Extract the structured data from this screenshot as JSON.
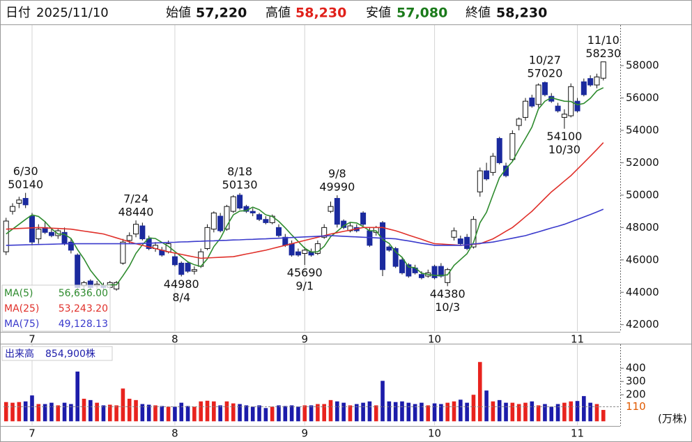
{
  "header": {
    "date_label": "日付",
    "date": "2025/11/10",
    "open_label": "始値",
    "open": "57,220",
    "high_label": "高値",
    "high": "58,230",
    "low_label": "安値",
    "low": "57,080",
    "close_label": "終値",
    "close": "58,230"
  },
  "chart_data": [
    {
      "type": "candlestick",
      "categories": [
        null,
        null,
        null,
        null,
        "7",
        null,
        null,
        null,
        null,
        null,
        null,
        null,
        null,
        null,
        null,
        null,
        null,
        null,
        null,
        null,
        null,
        null,
        null,
        null,
        null,
        null,
        "8",
        null,
        null,
        null,
        null,
        null,
        null,
        null,
        null,
        null,
        null,
        null,
        null,
        null,
        null,
        null,
        null,
        null,
        null,
        null,
        "9",
        null,
        null,
        null,
        null,
        null,
        null,
        null,
        null,
        null,
        null,
        null,
        null,
        null,
        null,
        null,
        null,
        null,
        null,
        null,
        "10",
        null,
        null,
        null,
        null,
        null,
        null,
        null,
        null,
        null,
        null,
        null,
        null,
        null,
        null,
        null,
        null,
        null,
        null,
        null,
        null,
        null,
        "11",
        null,
        null,
        null,
        null
      ],
      "open": [
        46500,
        49000,
        49500,
        49800,
        48700,
        47300,
        48000,
        47700,
        47500,
        47700,
        47100,
        46300,
        44400,
        44700,
        44400,
        44400,
        44300,
        44200,
        45800,
        47200,
        47600,
        48100,
        47300,
        46700,
        46600,
        46500,
        46200,
        45800,
        45800,
        45300,
        45600,
        46700,
        47900,
        48700,
        47900,
        49000,
        50000,
        49300,
        49000,
        48800,
        48500,
        48300,
        48000,
        47400,
        47000,
        46500,
        46400,
        46500,
        46400,
        47400,
        49000,
        49800,
        48400,
        47800,
        48000,
        48900,
        47800,
        47700,
        48300,
        46800,
        46700,
        46000,
        45700,
        45500,
        45100,
        45000,
        45600,
        45600,
        44600,
        47400,
        47300,
        47400,
        46800,
        50200,
        51500,
        51400,
        53500,
        51800,
        52200,
        54300,
        54800,
        56000,
        55600,
        56950,
        56100,
        55500,
        54800,
        54900,
        55800,
        57000,
        57200,
        56800,
        57220
      ],
      "high": [
        48600,
        49500,
        49900,
        50140,
        48900,
        48200,
        48400,
        48000,
        47900,
        48000,
        47300,
        46400,
        44700,
        44800,
        44700,
        44600,
        44700,
        44700,
        47300,
        47700,
        48440,
        48300,
        47500,
        47100,
        46800,
        47200,
        46400,
        45900,
        45900,
        45600,
        46700,
        48200,
        49000,
        48900,
        49400,
        50000,
        50130,
        49400,
        49200,
        48900,
        48700,
        48800,
        48200,
        47600,
        47200,
        46700,
        46800,
        46700,
        47200,
        48200,
        49600,
        49990,
        48500,
        48300,
        48200,
        49000,
        48000,
        48100,
        48400,
        46900,
        46800,
        46100,
        45800,
        45700,
        45300,
        45400,
        45700,
        45800,
        45500,
        48000,
        47500,
        47600,
        48700,
        51700,
        52000,
        52600,
        53600,
        52000,
        54000,
        54800,
        56000,
        56200,
        56900,
        57020,
        56300,
        55700,
        55300,
        56900,
        56000,
        57200,
        57400,
        57500,
        58230
      ],
      "low": [
        46300,
        48800,
        49200,
        49200,
        46900,
        47000,
        47600,
        47400,
        47300,
        46900,
        46400,
        43900,
        44100,
        44200,
        44200,
        44100,
        44200,
        44100,
        45700,
        47000,
        47400,
        47200,
        46600,
        46500,
        46200,
        46400,
        45600,
        44980,
        45200,
        45100,
        45500,
        46600,
        47700,
        47700,
        47800,
        48900,
        49100,
        48900,
        48700,
        48400,
        48200,
        48200,
        47400,
        46800,
        46200,
        46200,
        45690,
        46200,
        46300,
        47300,
        48900,
        48000,
        47900,
        47700,
        47700,
        48100,
        46800,
        47500,
        45000,
        46500,
        45500,
        45100,
        44900,
        45100,
        44800,
        44900,
        44800,
        44900,
        44380,
        47200,
        46900,
        46600,
        46700,
        49900,
        50900,
        51200,
        51900,
        51100,
        52100,
        54000,
        54600,
        55400,
        55400,
        56100,
        55700,
        55100,
        54100,
        54800,
        55100,
        56100,
        56700,
        56600,
        57080
      ],
      "close": [
        48400,
        49300,
        49700,
        49400,
        47100,
        47900,
        47700,
        47500,
        47800,
        47000,
        46600,
        44300,
        44600,
        44300,
        44500,
        44300,
        44600,
        44600,
        47100,
        47500,
        48200,
        47300,
        46700,
        46900,
        46300,
        47000,
        45700,
        45100,
        45300,
        45400,
        46500,
        48000,
        48900,
        47800,
        49300,
        49900,
        49200,
        49000,
        48900,
        48500,
        48300,
        48700,
        47500,
        46900,
        46300,
        46300,
        46600,
        46300,
        47000,
        48000,
        49300,
        48200,
        48000,
        48100,
        47800,
        48200,
        46900,
        48000,
        45400,
        46600,
        45600,
        45200,
        45000,
        45200,
        44900,
        45200,
        44900,
        45000,
        45400,
        47800,
        47000,
        46700,
        48500,
        51500,
        51000,
        52400,
        52000,
        51200,
        53800,
        54700,
        55800,
        55500,
        56800,
        56200,
        55800,
        55200,
        55000,
        56700,
        55200,
        56200,
        56800,
        57300,
        58230
      ],
      "up_color": "#ffffff",
      "down_color": "#1b2a9e",
      "edge_color": "#111111",
      "ylim": [
        41600,
        60500
      ],
      "yticks": [
        42000,
        44000,
        46000,
        48000,
        50000,
        52000,
        54000,
        56000,
        58000
      ],
      "grid": "x",
      "series": [
        {
          "name": "MA(5)",
          "color": "#2e8b2e",
          "value_label": "56,636.00",
          "values": [
            47600,
            47900,
            48200,
            48500,
            48780,
            48680,
            48360,
            47920,
            47600,
            47580,
            47320,
            46640,
            46060,
            45360,
            44860,
            44400,
            44460,
            44460,
            45020,
            45620,
            46400,
            46940,
            47360,
            47320,
            47080,
            46840,
            46520,
            46200,
            45880,
            45700,
            45600,
            46060,
            46820,
            47320,
            48100,
            48780,
            49020,
            49040,
            49260,
            49100,
            48780,
            48680,
            48380,
            47980,
            47540,
            47140,
            46720,
            46480,
            46500,
            46840,
            47440,
            47760,
            48100,
            48320,
            48280,
            48060,
            47800,
            47800,
            47260,
            47020,
            46500,
            46160,
            45560,
            45520,
            45180,
            45100,
            45040,
            45040,
            45080,
            45660,
            46020,
            46380,
            47080,
            48300,
            48940,
            50020,
            51080,
            51620,
            52080,
            52820,
            53500,
            54200,
            55320,
            55800,
            56020,
            55900,
            55800,
            55780,
            55580,
            55660,
            55980,
            56440,
            56636
          ]
        },
        {
          "name": "MA(25)",
          "color": "#e0302a",
          "value_label": "53,243.20",
          "values": [
            47900,
            47920,
            47940,
            47960,
            47980,
            48000,
            47980,
            47960,
            47940,
            47920,
            47900,
            47840,
            47780,
            47720,
            47660,
            47600,
            47480,
            47360,
            47240,
            47120,
            47000,
            46900,
            46800,
            46700,
            46600,
            46500,
            46420,
            46340,
            46260,
            46180,
            46100,
            46120,
            46140,
            46160,
            46180,
            46200,
            46280,
            46360,
            46440,
            46520,
            46600,
            46700,
            46800,
            46900,
            47000,
            47100,
            47200,
            47300,
            47400,
            47500,
            47600,
            47680,
            47760,
            47840,
            47920,
            48000,
            48000,
            48000,
            48000,
            47900,
            47800,
            47670,
            47530,
            47400,
            47270,
            47130,
            47000,
            46980,
            46950,
            46930,
            46900,
            46930,
            46970,
            47000,
            47150,
            47300,
            47530,
            47770,
            48000,
            48330,
            48670,
            49000,
            49400,
            49800,
            50200,
            50530,
            50870,
            51200,
            51600,
            52000,
            52400,
            52820,
            53243.2
          ]
        },
        {
          "name": "MA(75)",
          "color": "#3a3acc",
          "value_label": "49,128.13",
          "values": [
            46900,
            46910,
            46920,
            46930,
            46940,
            46950,
            46960,
            46970,
            46980,
            46990,
            47000,
            47000,
            47000,
            47000,
            47000,
            47000,
            47000,
            47000,
            47000,
            47000,
            47000,
            47020,
            47030,
            47050,
            47060,
            47080,
            47090,
            47110,
            47120,
            47140,
            47150,
            47170,
            47180,
            47200,
            47210,
            47230,
            47240,
            47260,
            47270,
            47290,
            47300,
            47320,
            47340,
            47360,
            47380,
            47400,
            47420,
            47440,
            47460,
            47480,
            47500,
            47480,
            47460,
            47440,
            47420,
            47400,
            47380,
            47360,
            47340,
            47320,
            47300,
            47230,
            47170,
            47100,
            47030,
            46970,
            46900,
            46900,
            46900,
            46900,
            46900,
            46940,
            46980,
            47020,
            47060,
            47100,
            47180,
            47260,
            47340,
            47420,
            47500,
            47620,
            47730,
            47850,
            47970,
            48080,
            48200,
            48350,
            48500,
            48650,
            48800,
            48960,
            49128.13
          ]
        }
      ],
      "annotations": [
        {
          "date": "6/30",
          "value": 50140
        },
        {
          "date": "7/24",
          "value": 48440
        },
        {
          "date": "8/4",
          "value": 44980
        },
        {
          "date": "8/18",
          "value": 50130
        },
        {
          "date": "9/1",
          "value": 45690
        },
        {
          "date": "9/8",
          "value": 49990
        },
        {
          "date": "10/3",
          "value": 44380
        },
        {
          "date": "10/27",
          "value": 57020
        },
        {
          "date": "10/30",
          "value": 54100
        },
        {
          "date": "11/10",
          "value": 58230
        }
      ]
    },
    {
      "type": "bar",
      "series": [
        {
          "name": "出来高",
          "value_label": "854,900株",
          "values": [
            145,
            140,
            145,
            150,
            195,
            130,
            130,
            140,
            120,
            140,
            130,
            375,
            170,
            160,
            140,
            120,
            125,
            120,
            247,
            170,
            160,
            130,
            125,
            120,
            115,
            110,
            110,
            140,
            115,
            110,
            150,
            155,
            150,
            120,
            150,
            135,
            130,
            120,
            110,
            120,
            100,
            110,
            120,
            115,
            120,
            110,
            120,
            120,
            130,
            130,
            160,
            150,
            140,
            120,
            130,
            140,
            150,
            120,
            305,
            150,
            145,
            150,
            140,
            130,
            140,
            120,
            135,
            130,
            140,
            150,
            163,
            140,
            200,
            447,
            232,
            150,
            160,
            140,
            140,
            130,
            140,
            150,
            120,
            130,
            110,
            130,
            140,
            150,
            153,
            190,
            140,
            130,
            85.49
          ]
        }
      ],
      "up_color": "#e8231e",
      "down_color": "#1c1caa",
      "ylim": [
        -30,
        585
      ],
      "yticks": [
        200,
        300,
        400
      ],
      "average": 110,
      "average_color": "#e05a00",
      "unit": "(万株)",
      "grid": "x"
    }
  ]
}
